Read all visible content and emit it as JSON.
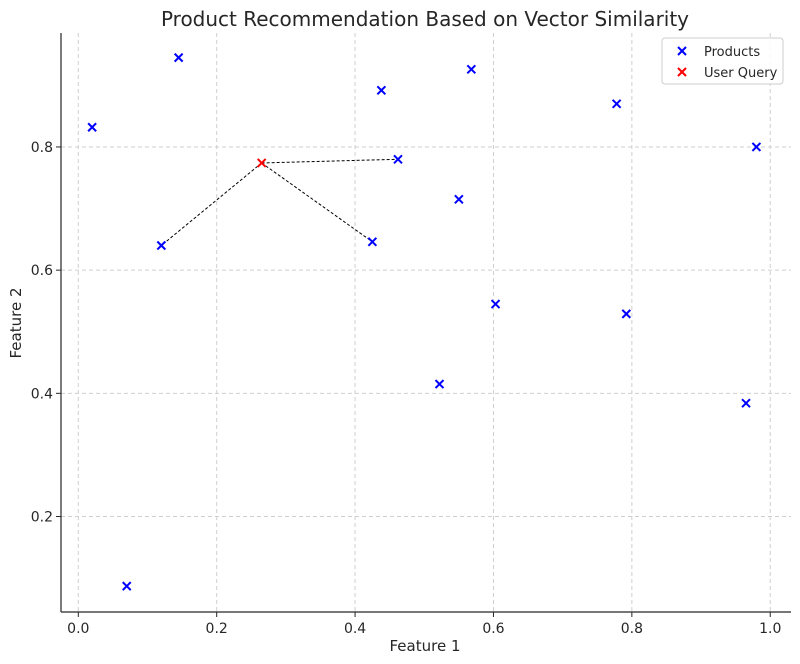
{
  "chart_data": {
    "type": "scatter",
    "title": "Product Recommendation Based on Vector Similarity",
    "xlabel": "Feature 1",
    "ylabel": "Feature 2",
    "xlim": [
      -0.025,
      1.03
    ],
    "ylim": [
      0.045,
      0.985
    ],
    "xticks": [
      0.0,
      0.2,
      0.4,
      0.6,
      0.8,
      1.0
    ],
    "xtick_labels": [
      "0.0",
      "0.2",
      "0.4",
      "0.6",
      "0.8",
      "1.0"
    ],
    "yticks": [
      0.2,
      0.4,
      0.6,
      0.8
    ],
    "ytick_labels": [
      "0.2",
      "0.4",
      "0.6",
      "0.8"
    ],
    "grid": true,
    "legend_position": "top-right",
    "series": [
      {
        "name": "Products",
        "color": "#0000ff",
        "marker": "x",
        "points": [
          {
            "x": 0.02,
            "y": 0.832
          },
          {
            "x": 0.145,
            "y": 0.945
          },
          {
            "x": 0.07,
            "y": 0.087
          },
          {
            "x": 0.12,
            "y": 0.64
          },
          {
            "x": 0.438,
            "y": 0.892
          },
          {
            "x": 0.462,
            "y": 0.78
          },
          {
            "x": 0.425,
            "y": 0.646
          },
          {
            "x": 0.568,
            "y": 0.926
          },
          {
            "x": 0.55,
            "y": 0.715
          },
          {
            "x": 0.603,
            "y": 0.545
          },
          {
            "x": 0.522,
            "y": 0.415
          },
          {
            "x": 0.778,
            "y": 0.87
          },
          {
            "x": 0.792,
            "y": 0.529
          },
          {
            "x": 0.98,
            "y": 0.8
          },
          {
            "x": 0.965,
            "y": 0.384
          }
        ]
      },
      {
        "name": "User Query",
        "color": "#ff0000",
        "marker": "x",
        "points": [
          {
            "x": 0.265,
            "y": 0.774
          }
        ]
      }
    ],
    "connections": [
      {
        "from": {
          "x": 0.265,
          "y": 0.774
        },
        "to": {
          "x": 0.462,
          "y": 0.78
        }
      },
      {
        "from": {
          "x": 0.265,
          "y": 0.774
        },
        "to": {
          "x": 0.425,
          "y": 0.646
        }
      },
      {
        "from": {
          "x": 0.265,
          "y": 0.774
        },
        "to": {
          "x": 0.12,
          "y": 0.64
        }
      }
    ]
  }
}
